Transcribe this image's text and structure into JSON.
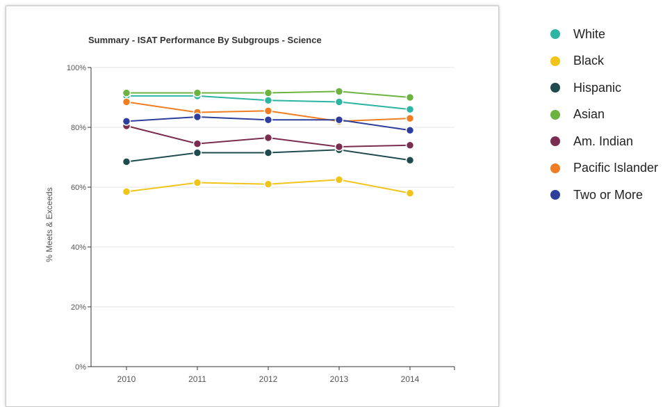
{
  "chart_data": {
    "type": "line",
    "title": "Summary - ISAT Performance By Subgroups - Science",
    "ylabel": "% Meets & Exceeds",
    "xlabel": "",
    "x": [
      "2010",
      "2011",
      "2012",
      "2013",
      "2014"
    ],
    "ylim": [
      0,
      100
    ],
    "yticks": [
      "0%",
      "20%",
      "40%",
      "60%",
      "80%",
      "100%"
    ],
    "ytick_values": [
      0,
      20,
      40,
      60,
      80,
      100
    ],
    "grid": true,
    "legend_position": "right",
    "series": [
      {
        "name": "White",
        "color": "#2bb5a2",
        "values": [
          90.5,
          90.5,
          89,
          88.5,
          86
        ]
      },
      {
        "name": "Black",
        "color": "#f0c419",
        "values": [
          58.5,
          61.5,
          61,
          62.5,
          58
        ]
      },
      {
        "name": "Hispanic",
        "color": "#1f4b4f",
        "values": [
          68.5,
          71.5,
          71.5,
          72.5,
          69
        ]
      },
      {
        "name": "Asian",
        "color": "#6cb33f",
        "values": [
          91.5,
          91.5,
          91.5,
          92,
          90
        ]
      },
      {
        "name": "Am. Indian",
        "color": "#7b2d4f",
        "values": [
          80.5,
          74.5,
          76.5,
          73.5,
          74
        ]
      },
      {
        "name": "Pacific Islander",
        "color": "#ef7d21",
        "values": [
          88.5,
          85,
          85.5,
          82,
          83
        ]
      },
      {
        "name": "Two or More",
        "color": "#2d3e9c",
        "values": [
          82,
          83.5,
          82.5,
          82.5,
          79
        ]
      }
    ]
  }
}
